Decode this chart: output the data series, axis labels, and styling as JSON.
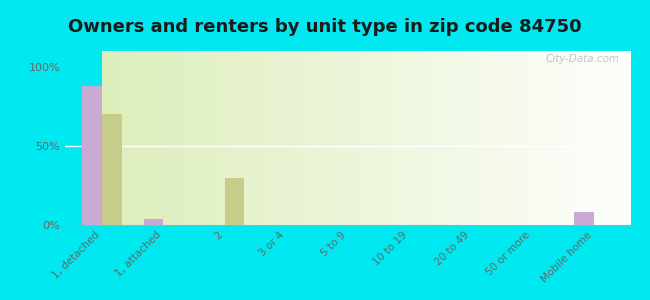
{
  "title": "Owners and renters by unit type in zip code 84750",
  "categories": [
    "1, detached",
    "1, attached",
    "2",
    "3 or 4",
    "5 to 9",
    "10 to 19",
    "20 to 49",
    "50 or more",
    "Mobile home"
  ],
  "owner_values": [
    88,
    4,
    0,
    0,
    0,
    0,
    0,
    0,
    8
  ],
  "renter_values": [
    70,
    0,
    30,
    0,
    0,
    0,
    0,
    0,
    0
  ],
  "owner_color": "#c9aad4",
  "renter_color": "#c8cc8a",
  "background_color": "#00e8f0",
  "plot_bg_color": "#eef5d8",
  "yticks": [
    0,
    50,
    100
  ],
  "ylim": [
    0,
    110
  ],
  "bar_width": 0.32,
  "watermark": "City-Data.com",
  "title_fontsize": 13,
  "tick_fontsize": 7.5,
  "ytick_fontsize": 8
}
